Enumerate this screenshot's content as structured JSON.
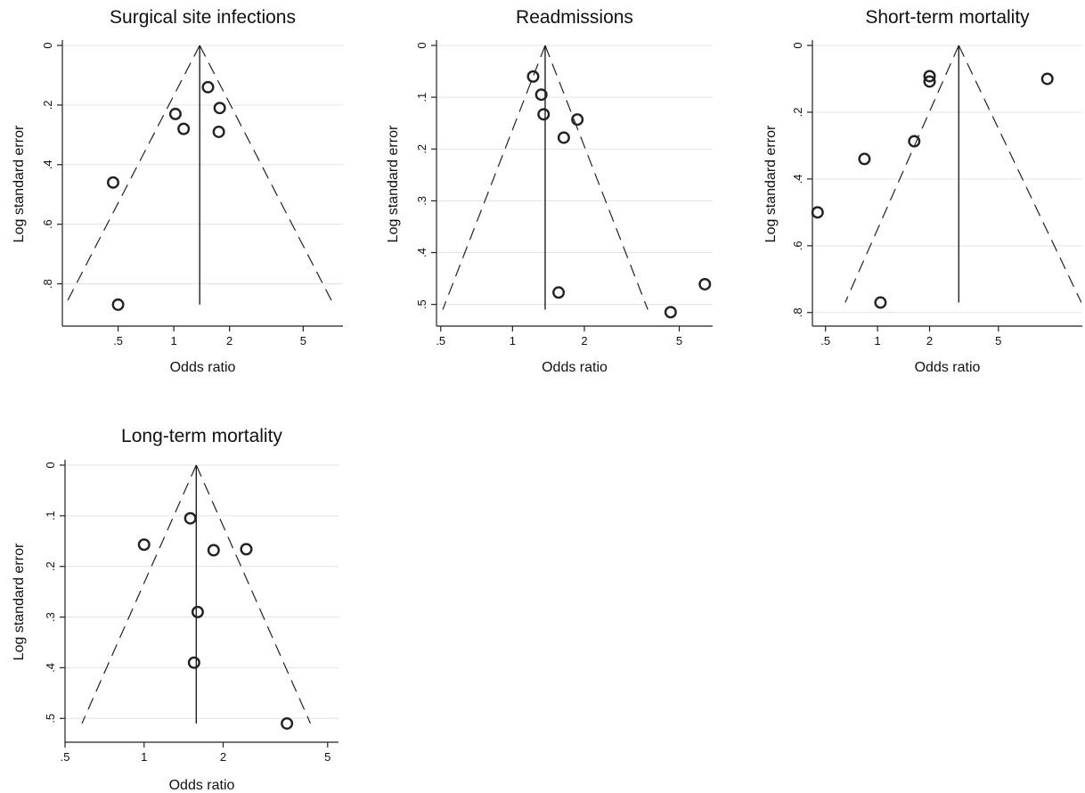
{
  "figure": {
    "background": "#ffffff"
  },
  "chart_data": [
    {
      "id": "ssi",
      "type": "scatter",
      "title": "Surgical site infections",
      "xlabel": "Odds ratio",
      "ylabel": "Log standard error",
      "x_scale": "log",
      "xlim": [
        0.25,
        8.2
      ],
      "ylim": [
        0,
        0.93
      ],
      "y_reversed": true,
      "y_ticks": [
        0,
        0.2,
        0.4,
        0.6,
        0.8
      ],
      "y_tick_labels": [
        "0",
        ".2",
        ".4",
        ".6",
        ".8"
      ],
      "x_ticks": [
        0.5,
        1,
        2,
        5
      ],
      "x_tick_labels": [
        ".5",
        "1",
        "2",
        "5"
      ],
      "grid": true,
      "pooled_or": 1.38,
      "funnel": {
        "apex_se": 0,
        "base_se": 0.87,
        "left_or": 0.26,
        "right_or": 7.3
      },
      "center_line": {
        "or": 1.38,
        "se_from": 0,
        "se_to": 0.87
      },
      "points": [
        {
          "or": 0.5,
          "se": 0.87
        },
        {
          "or": 0.47,
          "se": 0.46
        },
        {
          "or": 1.02,
          "se": 0.23
        },
        {
          "or": 1.13,
          "se": 0.28
        },
        {
          "or": 1.53,
          "se": 0.14
        },
        {
          "or": 1.77,
          "se": 0.21
        },
        {
          "or": 1.75,
          "se": 0.29
        }
      ]
    },
    {
      "id": "readmissions",
      "type": "scatter",
      "title": "Readmissions",
      "xlabel": "Odds ratio",
      "ylabel": "Log standard error",
      "x_scale": "log",
      "xlim": [
        0.48,
        6.9
      ],
      "ylim": [
        0,
        0.535
      ],
      "y_reversed": true,
      "y_ticks": [
        0,
        0.1,
        0.2,
        0.3,
        0.4,
        0.5
      ],
      "y_tick_labels": [
        "0",
        ".1",
        ".2",
        ".3",
        ".4",
        ".5"
      ],
      "x_ticks": [
        0.5,
        1,
        2,
        5
      ],
      "x_tick_labels": [
        ".5",
        "1",
        "2",
        "5"
      ],
      "grid": true,
      "pooled_or": 1.37,
      "funnel": {
        "apex_se": 0,
        "base_se": 0.51,
        "left_or": 0.51,
        "right_or": 3.69
      },
      "center_line": {
        "or": 1.37,
        "se_from": 0,
        "se_to": 0.51
      },
      "points": [
        {
          "or": 1.22,
          "se": 0.06
        },
        {
          "or": 1.32,
          "se": 0.095
        },
        {
          "or": 1.35,
          "se": 0.133
        },
        {
          "or": 1.87,
          "se": 0.143
        },
        {
          "or": 1.64,
          "se": 0.178
        },
        {
          "or": 1.56,
          "se": 0.477
        },
        {
          "or": 4.6,
          "se": 0.515
        },
        {
          "or": 6.4,
          "se": 0.461
        }
      ]
    },
    {
      "id": "short_term_mortality",
      "type": "scatter",
      "title": "Short-term mortality",
      "xlabel": "Odds ratio",
      "ylabel": "Log standard error",
      "x_scale": "log",
      "xlim": [
        0.42,
        15.3
      ],
      "ylim": [
        0,
        0.83
      ],
      "y_reversed": true,
      "y_ticks": [
        0,
        0.2,
        0.4,
        0.6,
        0.8
      ],
      "y_tick_labels": [
        "0",
        ".2",
        ".4",
        ".6",
        ".8"
      ],
      "x_ticks": [
        0.5,
        1,
        2,
        5
      ],
      "x_tick_labels": [
        ".5",
        "1",
        "2",
        "5"
      ],
      "grid": true,
      "pooled_or": 2.95,
      "funnel": {
        "apex_se": 0,
        "base_se": 0.77,
        "left_or": 0.65,
        "right_or": 15.1
      },
      "center_line": {
        "or": 2.95,
        "se_from": 0,
        "se_to": 0.77
      },
      "points": [
        {
          "or": 0.45,
          "se": 0.5
        },
        {
          "or": 0.84,
          "se": 0.34
        },
        {
          "or": 1.04,
          "se": 0.77
        },
        {
          "or": 1.63,
          "se": 0.287
        },
        {
          "or": 2.0,
          "se": 0.092
        },
        {
          "or": 2.0,
          "se": 0.108
        },
        {
          "or": 9.6,
          "se": 0.1
        }
      ]
    },
    {
      "id": "long_term_mortality",
      "type": "scatter",
      "title": "Long-term mortality",
      "xlabel": "Odds ratio",
      "ylabel": "Log standard error",
      "x_scale": "log",
      "xlim": [
        0.5,
        5.5
      ],
      "ylim": [
        0,
        0.54
      ],
      "y_reversed": true,
      "y_ticks": [
        0,
        0.1,
        0.2,
        0.3,
        0.4,
        0.5
      ],
      "y_tick_labels": [
        "0",
        ".1",
        ".2",
        ".3",
        ".4",
        ".5"
      ],
      "x_ticks": [
        0.5,
        1,
        2,
        5
      ],
      "x_tick_labels": [
        ".5",
        "1",
        "2",
        "5"
      ],
      "grid": true,
      "pooled_or": 1.58,
      "funnel": {
        "apex_se": 0,
        "base_se": 0.51,
        "left_or": 0.58,
        "right_or": 4.3
      },
      "center_line": {
        "or": 1.58,
        "se_from": 0,
        "se_to": 0.51
      },
      "points": [
        {
          "or": 1.5,
          "se": 0.105
        },
        {
          "or": 1.0,
          "se": 0.157
        },
        {
          "or": 1.84,
          "se": 0.168
        },
        {
          "or": 2.45,
          "se": 0.166
        },
        {
          "or": 1.6,
          "se": 0.29
        },
        {
          "or": 1.55,
          "se": 0.39
        },
        {
          "or": 3.5,
          "se": 0.51
        }
      ]
    }
  ]
}
